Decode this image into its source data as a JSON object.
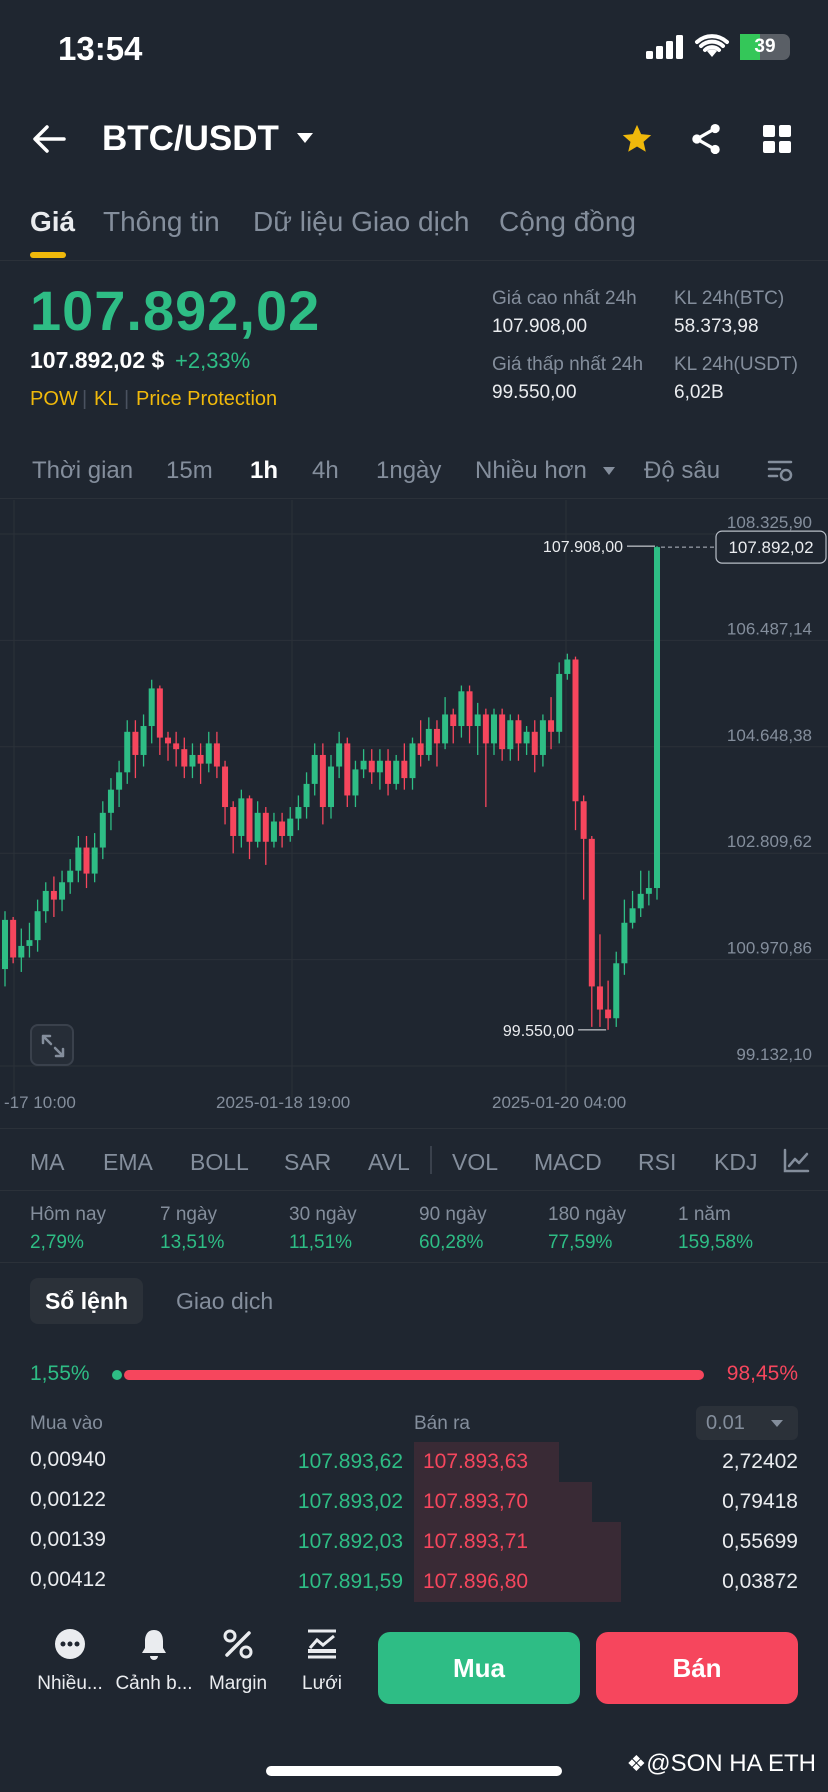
{
  "status": {
    "time": "13:54",
    "battery": "39"
  },
  "header": {
    "pair": "BTC/USDT"
  },
  "tabs": [
    "Giá",
    "Thông tin",
    "Dữ liệu Giao dịch",
    "Cộng đồng"
  ],
  "price": {
    "last": "107.892,02",
    "usd": "107.892,02 $",
    "change": "+2,33%",
    "tags": [
      "POW",
      "KL",
      "Price Protection"
    ]
  },
  "stats": {
    "high_label": "Giá cao nhất 24h",
    "high_val": "107.908,00",
    "low_label": "Giá thấp nhất 24h",
    "low_val": "99.550,00",
    "vol_btc_label": "KL 24h(BTC)",
    "vol_btc_val": "58.373,98",
    "vol_usdt_label": "KL 24h(USDT)",
    "vol_usdt_val": "6,02B"
  },
  "intervals": [
    "Thời gian",
    "15m",
    "1h",
    "4h",
    "1ngày",
    "Nhiều hơn",
    "Độ sâu"
  ],
  "chart_data": {
    "type": "candlestick",
    "interval": "1h",
    "y_ticks": [
      "108.325,90",
      "106.487,14",
      "104.648,38",
      "102.809,62",
      "100.970,86",
      "99.132,10"
    ],
    "y_range": [
      99132.1,
      108325.9
    ],
    "x_ticks": [
      "-17 10:00",
      "2025-01-18 19:00",
      "2025-01-20 04:00"
    ],
    "high_marker": "107.908,00",
    "low_marker": "99.550,00",
    "current_price_label": "107.892,02",
    "candles": [
      [
        100600,
        101450,
        100300,
        101600
      ],
      [
        101450,
        100800,
        100700,
        101500
      ],
      [
        100800,
        101000,
        100550,
        101300
      ],
      [
        101000,
        101100,
        100800,
        101400
      ],
      [
        101100,
        101600,
        100900,
        101800
      ],
      [
        101600,
        101950,
        101400,
        102100
      ],
      [
        101950,
        101800,
        101500,
        102200
      ],
      [
        101800,
        102100,
        101600,
        102300
      ],
      [
        102100,
        102300,
        101900,
        102500
      ],
      [
        102300,
        102700,
        102100,
        102900
      ],
      [
        102700,
        102250,
        102000,
        102900
      ],
      [
        102250,
        102700,
        102100,
        102950
      ],
      [
        102700,
        103300,
        102500,
        103500
      ],
      [
        103300,
        103700,
        103000,
        103900
      ],
      [
        103700,
        104000,
        103400,
        104200
      ],
      [
        104000,
        104700,
        103800,
        104900
      ],
      [
        104700,
        104300,
        103900,
        104900
      ],
      [
        104300,
        104800,
        104100,
        105000
      ],
      [
        104800,
        105450,
        104500,
        105600
      ],
      [
        105450,
        104600,
        104300,
        105500
      ],
      [
        104600,
        104500,
        104200,
        104700
      ],
      [
        104500,
        104400,
        104100,
        104700
      ],
      [
        104400,
        104100,
        103900,
        104600
      ],
      [
        104100,
        104300,
        103900,
        104500
      ],
      [
        104300,
        104150,
        103800,
        104500
      ],
      [
        104150,
        104500,
        104000,
        104700
      ],
      [
        104500,
        104100,
        103900,
        104700
      ],
      [
        104100,
        103400,
        103100,
        104200
      ],
      [
        103400,
        102900,
        102600,
        103500
      ],
      [
        102900,
        103550,
        102700,
        103700
      ],
      [
        103550,
        102800,
        102500,
        103600
      ],
      [
        102800,
        103300,
        102700,
        103500
      ],
      [
        103300,
        102800,
        102400,
        103400
      ],
      [
        102800,
        103150,
        102700,
        103300
      ],
      [
        103150,
        102900,
        102700,
        103300
      ],
      [
        102900,
        103200,
        102800,
        103400
      ],
      [
        103200,
        103400,
        103000,
        103600
      ],
      [
        103400,
        103800,
        103200,
        104000
      ],
      [
        103800,
        104300,
        103600,
        104500
      ],
      [
        104300,
        103400,
        103100,
        104500
      ],
      [
        103400,
        104100,
        103200,
        104300
      ],
      [
        104100,
        104500,
        103900,
        104700
      ],
      [
        104500,
        103600,
        103400,
        104600
      ],
      [
        103600,
        104050,
        103400,
        104200
      ],
      [
        104050,
        104200,
        103900,
        104400
      ],
      [
        104200,
        104000,
        103800,
        104400
      ],
      [
        104000,
        104200,
        103700,
        104400
      ],
      [
        104200,
        103800,
        103600,
        104400
      ],
      [
        103800,
        104200,
        103700,
        104300
      ],
      [
        104200,
        103900,
        103700,
        104500
      ],
      [
        103900,
        104500,
        103700,
        104600
      ],
      [
        104500,
        104300,
        104100,
        104900
      ],
      [
        104300,
        104750,
        104200,
        104950
      ],
      [
        104750,
        104500,
        104100,
        104900
      ],
      [
        104500,
        105000,
        104400,
        105300
      ],
      [
        105000,
        104800,
        104500,
        105100
      ],
      [
        104800,
        105400,
        104600,
        105500
      ],
      [
        105400,
        104800,
        104500,
        105500
      ],
      [
        104800,
        105000,
        104300,
        105200
      ],
      [
        105000,
        104500,
        103400,
        105100
      ],
      [
        104500,
        105000,
        104300,
        105100
      ],
      [
        105000,
        104400,
        104200,
        105100
      ],
      [
        104400,
        104900,
        104200,
        105000
      ],
      [
        104900,
        104500,
        104200,
        105000
      ],
      [
        104500,
        104700,
        104300,
        104800
      ],
      [
        104700,
        104300,
        104000,
        104900
      ],
      [
        104300,
        104900,
        104100,
        105000
      ],
      [
        104900,
        104700,
        104400,
        105300
      ],
      [
        104700,
        105700,
        104500,
        105900
      ],
      [
        105700,
        105950,
        105600,
        106050
      ],
      [
        105950,
        103500,
        103000,
        106000
      ],
      [
        103500,
        102850,
        101800,
        103600
      ],
      [
        102850,
        100300,
        99600,
        102900
      ],
      [
        100300,
        99900,
        99600,
        101200
      ],
      [
        99900,
        99750,
        99550,
        100400
      ],
      [
        99750,
        100700,
        99600,
        100900
      ],
      [
        100700,
        101400,
        100500,
        101800
      ],
      [
        101400,
        101650,
        101300,
        101950
      ],
      [
        101650,
        101900,
        101500,
        102300
      ],
      [
        101900,
        102000,
        101700,
        102300
      ],
      [
        102000,
        107892,
        101800,
        107908
      ]
    ]
  },
  "indicators": [
    "MA",
    "EMA",
    "BOLL",
    "SAR",
    "AVL",
    "VOL",
    "MACD",
    "RSI",
    "KDJ"
  ],
  "performance": [
    {
      "label": "Hôm nay",
      "value": "2,79%"
    },
    {
      "label": "7 ngày",
      "value": "13,51%"
    },
    {
      "label": "30 ngày",
      "value": "11,51%"
    },
    {
      "label": "90 ngày",
      "value": "60,28%"
    },
    {
      "label": "180 ngày",
      "value": "77,59%"
    },
    {
      "label": "1 năm",
      "value": "159,58%"
    }
  ],
  "orderbook": {
    "tab_book": "Sổ lệnh",
    "tab_trades": "Giao dịch",
    "bid_ratio": "1,55%",
    "ask_ratio": "98,45%",
    "col_buy": "Mua vào",
    "col_sell": "Bán ra",
    "precision": "0.01",
    "rows": [
      {
        "bid_qty": "0,00940",
        "bid_price": "107.893,62",
        "ask_price": "107.893,63",
        "ask_qty": "2,72402",
        "depth": 0.35
      },
      {
        "bid_qty": "0,00122",
        "bid_price": "107.893,02",
        "ask_price": "107.893,70",
        "ask_qty": "0,79418",
        "depth": 0.43
      },
      {
        "bid_qty": "0,00139",
        "bid_price": "107.892,03",
        "ask_price": "107.893,71",
        "ask_qty": "0,55699",
        "depth": 0.5
      },
      {
        "bid_qty": "0,00412",
        "bid_price": "107.891,59",
        "ask_price": "107.896,80",
        "ask_qty": "0,03872",
        "depth": 0.5
      }
    ]
  },
  "bottom_bar": {
    "items": [
      "Nhiều...",
      "Cảnh b...",
      "Margin",
      "Lưới"
    ],
    "buy": "Mua",
    "sell": "Bán"
  },
  "watermark": "@SON HA ETH",
  "colors": {
    "up": "#2ebd85",
    "down": "#f6465d",
    "accent": "#f0b90b",
    "bg": "#1f2630"
  }
}
